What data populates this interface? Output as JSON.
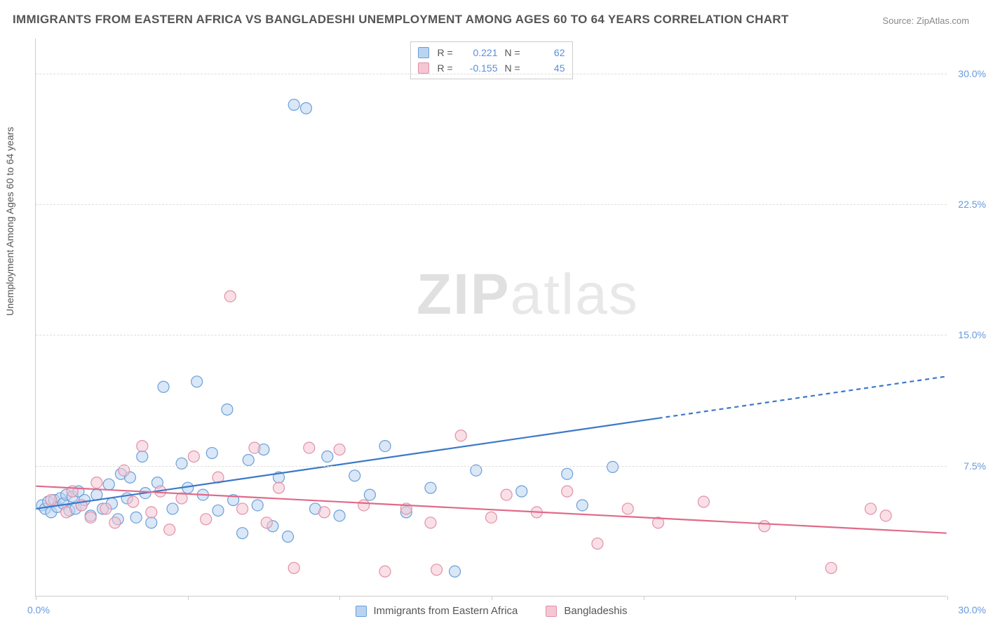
{
  "title": "IMMIGRANTS FROM EASTERN AFRICA VS BANGLADESHI UNEMPLOYMENT AMONG AGES 60 TO 64 YEARS CORRELATION CHART",
  "source_label": "Source:",
  "source_name": "ZipAtlas.com",
  "watermark_zip": "ZIP",
  "watermark_atlas": "atlas",
  "chart": {
    "type": "scatter",
    "ylabel": "Unemployment Among Ages 60 to 64 years",
    "xlim": [
      0,
      30
    ],
    "ylim": [
      0,
      32
    ],
    "xticks": [
      0,
      5,
      10,
      15,
      20,
      25,
      30
    ],
    "yticks": [
      7.5,
      15.0,
      22.5,
      30.0
    ],
    "ytick_labels": [
      "7.5%",
      "15.0%",
      "22.5%",
      "30.0%"
    ],
    "xmin_label": "0.0%",
    "xmax_label": "30.0%",
    "grid_color": "#dddddd",
    "axis_color": "#cccccc",
    "background": "#ffffff",
    "marker_radius": 8,
    "marker_opacity": 0.55,
    "line_width": 2.2,
    "series": [
      {
        "name": "Immigrants from Eastern Africa",
        "color_fill": "#b9d3f0",
        "color_stroke": "#6a9fd9",
        "color_line": "#3b78c9",
        "R": "0.221",
        "N": "62",
        "trend": {
          "x1": 0,
          "y1": 5.0,
          "x2_solid": 20.5,
          "y2_solid": 10.2,
          "x2": 30,
          "y2": 12.6
        },
        "points": [
          [
            0.2,
            5.2
          ],
          [
            0.3,
            5.0
          ],
          [
            0.4,
            5.4
          ],
          [
            0.5,
            4.8
          ],
          [
            0.6,
            5.5
          ],
          [
            0.7,
            5.1
          ],
          [
            0.8,
            5.6
          ],
          [
            0.9,
            5.3
          ],
          [
            1.0,
            5.8
          ],
          [
            1.1,
            4.9
          ],
          [
            1.2,
            5.7
          ],
          [
            1.3,
            5.0
          ],
          [
            1.4,
            6.0
          ],
          [
            1.5,
            5.2
          ],
          [
            1.6,
            5.5
          ],
          [
            1.8,
            4.6
          ],
          [
            2.0,
            5.8
          ],
          [
            2.2,
            5.0
          ],
          [
            2.4,
            6.4
          ],
          [
            2.5,
            5.3
          ],
          [
            2.7,
            4.4
          ],
          [
            2.8,
            7.0
          ],
          [
            3.0,
            5.6
          ],
          [
            3.1,
            6.8
          ],
          [
            3.3,
            4.5
          ],
          [
            3.5,
            8.0
          ],
          [
            3.6,
            5.9
          ],
          [
            3.8,
            4.2
          ],
          [
            4.0,
            6.5
          ],
          [
            4.2,
            12.0
          ],
          [
            4.5,
            5.0
          ],
          [
            4.8,
            7.6
          ],
          [
            5.0,
            6.2
          ],
          [
            5.3,
            12.3
          ],
          [
            5.5,
            5.8
          ],
          [
            5.8,
            8.2
          ],
          [
            6.0,
            4.9
          ],
          [
            6.3,
            10.7
          ],
          [
            6.5,
            5.5
          ],
          [
            6.8,
            3.6
          ],
          [
            7.0,
            7.8
          ],
          [
            7.3,
            5.2
          ],
          [
            7.5,
            8.4
          ],
          [
            7.8,
            4.0
          ],
          [
            8.0,
            6.8
          ],
          [
            8.3,
            3.4
          ],
          [
            8.5,
            28.2
          ],
          [
            8.9,
            28.0
          ],
          [
            9.2,
            5.0
          ],
          [
            9.6,
            8.0
          ],
          [
            10.0,
            4.6
          ],
          [
            10.5,
            6.9
          ],
          [
            11.0,
            5.8
          ],
          [
            11.5,
            8.6
          ],
          [
            12.2,
            4.8
          ],
          [
            13.0,
            6.2
          ],
          [
            13.8,
            1.4
          ],
          [
            14.5,
            7.2
          ],
          [
            16.0,
            6.0
          ],
          [
            17.5,
            7.0
          ],
          [
            18.0,
            5.2
          ],
          [
            19.0,
            7.4
          ]
        ]
      },
      {
        "name": "Bangladeshis",
        "color_fill": "#f4c7d2",
        "color_stroke": "#e290a8",
        "color_line": "#e06a8a",
        "R": "-0.155",
        "N": "45",
        "trend": {
          "x1": 0,
          "y1": 6.3,
          "x2_solid": 30,
          "y2_solid": 3.6,
          "x2": 30,
          "y2": 3.6
        },
        "points": [
          [
            0.5,
            5.5
          ],
          [
            1.0,
            4.8
          ],
          [
            1.2,
            6.0
          ],
          [
            1.5,
            5.2
          ],
          [
            1.8,
            4.5
          ],
          [
            2.0,
            6.5
          ],
          [
            2.3,
            5.0
          ],
          [
            2.6,
            4.2
          ],
          [
            2.9,
            7.2
          ],
          [
            3.2,
            5.4
          ],
          [
            3.5,
            8.6
          ],
          [
            3.8,
            4.8
          ],
          [
            4.1,
            6.0
          ],
          [
            4.4,
            3.8
          ],
          [
            4.8,
            5.6
          ],
          [
            5.2,
            8.0
          ],
          [
            5.6,
            4.4
          ],
          [
            6.0,
            6.8
          ],
          [
            6.4,
            17.2
          ],
          [
            6.8,
            5.0
          ],
          [
            7.2,
            8.5
          ],
          [
            7.6,
            4.2
          ],
          [
            8.0,
            6.2
          ],
          [
            8.5,
            1.6
          ],
          [
            9.0,
            8.5
          ],
          [
            9.5,
            4.8
          ],
          [
            10.0,
            8.4
          ],
          [
            10.8,
            5.2
          ],
          [
            11.5,
            1.4
          ],
          [
            12.2,
            5.0
          ],
          [
            13.0,
            4.2
          ],
          [
            13.2,
            1.5
          ],
          [
            14.0,
            9.2
          ],
          [
            15.0,
            4.5
          ],
          [
            15.5,
            5.8
          ],
          [
            16.5,
            4.8
          ],
          [
            17.5,
            6.0
          ],
          [
            18.5,
            3.0
          ],
          [
            19.5,
            5.0
          ],
          [
            20.5,
            4.2
          ],
          [
            22.0,
            5.4
          ],
          [
            24.0,
            4.0
          ],
          [
            26.2,
            1.6
          ],
          [
            27.5,
            5.0
          ],
          [
            28.0,
            4.6
          ]
        ]
      }
    ],
    "legend": {
      "r_label": "R =",
      "n_label": "N ="
    }
  }
}
